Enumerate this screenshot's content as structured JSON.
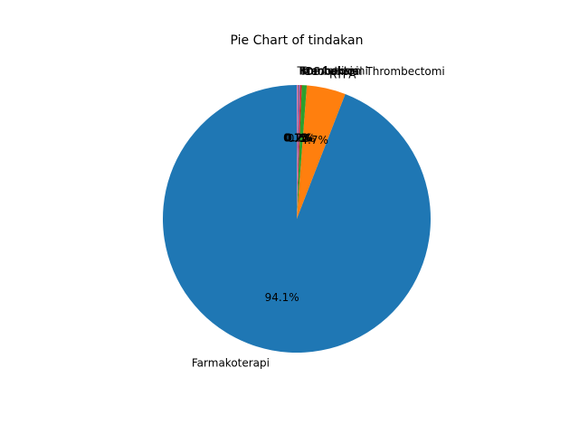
{
  "chart_data": {
    "type": "pie",
    "title": "Pie Chart of tindakan",
    "slices": [
      {
        "label": "Farmakoterapi",
        "pct_label": "94.1%",
        "value": 94.1,
        "color": "#1f77b4"
      },
      {
        "label": "RTPA",
        "pct_label": "4.7%",
        "value": 4.7,
        "color": "#ff7f0e"
      },
      {
        "label": "DSA",
        "pct_label": "0.6%",
        "value": 0.6,
        "color": "#2ca02c"
      },
      {
        "label": "Mechanical Thrombectomi",
        "pct_label": "0.2%",
        "value": 0.2,
        "color": "#d62728"
      },
      {
        "label": "Kraniotomi",
        "pct_label": "0.2%",
        "value": 0.2,
        "color": "#9467bd"
      },
      {
        "label": "Trombolisis",
        "pct_label": "0.1%",
        "value": 0.1,
        "color": "#8c564b"
      },
      {
        "label": "Trombektomi",
        "pct_label": "0.1%",
        "value": 0.1,
        "color": "#e377c2"
      }
    ],
    "start_angle": "top",
    "direction": "counter-clockwise"
  }
}
